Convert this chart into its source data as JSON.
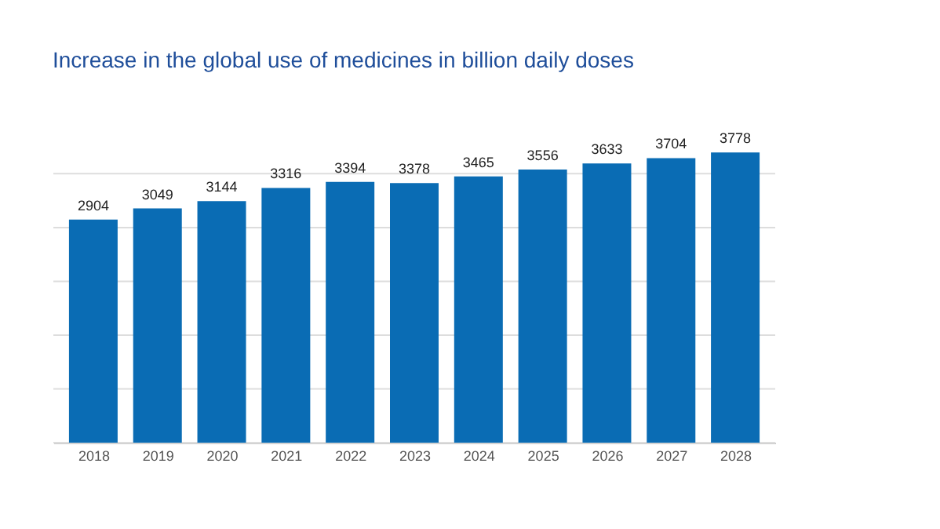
{
  "chart_data": {
    "type": "bar",
    "title": "Increase in the global use of medicines in billion daily doses",
    "categories": [
      "2018",
      "2019",
      "2020",
      "2021",
      "2022",
      "2023",
      "2024",
      "2025",
      "2026",
      "2027",
      "2028"
    ],
    "values": [
      2904,
      3049,
      3144,
      3316,
      3394,
      3378,
      3465,
      3556,
      3633,
      3704,
      3778
    ],
    "color": "#0a6cb4",
    "ylim": [
      0,
      3800
    ],
    "yticks": [
      {
        "value": 0,
        "label": null
      },
      {
        "value": 700,
        "label": null
      },
      {
        "value": 1400,
        "label": null
      },
      {
        "value": 2100,
        "label": null
      },
      {
        "value": 2800,
        "label": null
      },
      {
        "value": 3500,
        "label": null
      }
    ],
    "grid": "y",
    "data_labels": true,
    "tick_labels": "x"
  }
}
